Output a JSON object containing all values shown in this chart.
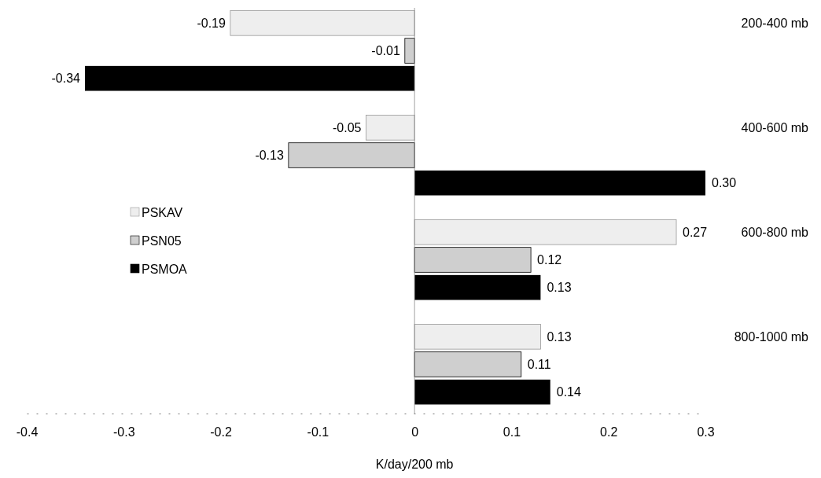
{
  "chart_data": {
    "type": "bar",
    "orientation": "horizontal",
    "xlabel": "K/day/200 mb",
    "categories": [
      "200-400 mb",
      "400-600 mb",
      "600-800 mb",
      "800-1000 mb"
    ],
    "series": [
      {
        "name": "PSKAV",
        "color": "#eeeeee",
        "values": [
          -0.19,
          -0.05,
          0.27,
          0.13
        ],
        "value_labels": [
          "-0.19",
          "-0.05",
          "0.27",
          "0.13"
        ]
      },
      {
        "name": "PSN05",
        "color": "#cfcfcf",
        "values": [
          -0.01,
          -0.13,
          0.12,
          0.11
        ],
        "value_labels": [
          "-0.01",
          "-0.13",
          "0.12",
          "0.11"
        ]
      },
      {
        "name": "PSMOA",
        "color": "#000000",
        "values": [
          -0.34,
          0.3,
          0.13,
          0.14
        ],
        "value_labels": [
          "-0.34",
          "0.30",
          "0.13",
          "0.14"
        ]
      }
    ],
    "xlim": [
      -0.4,
      0.3
    ],
    "xticks": [
      -0.4,
      -0.3,
      -0.2,
      -0.1,
      0,
      0.1,
      0.2,
      0.3
    ],
    "legend": "left"
  }
}
